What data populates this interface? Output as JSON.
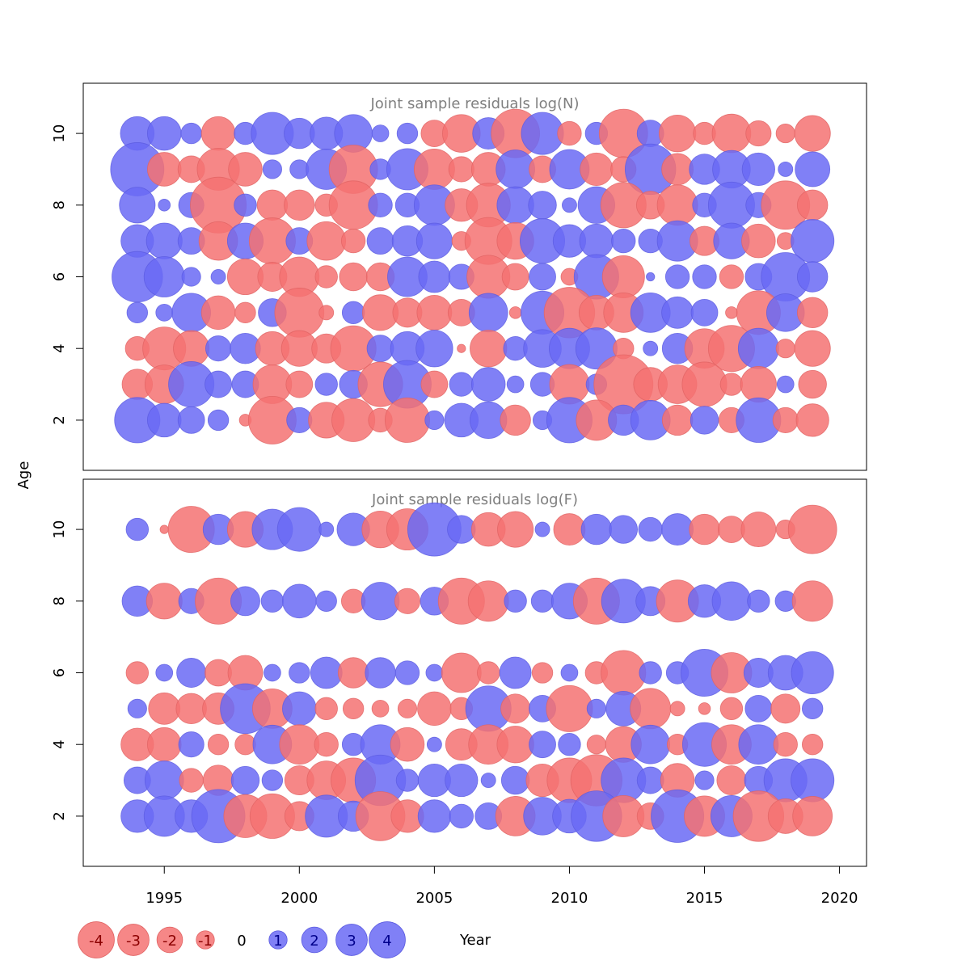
{
  "chart_data": {
    "type": "scatter",
    "ylabel": "Age",
    "xlabel": "Year",
    "xlim": [
      1992,
      2021
    ],
    "xticks": [
      1995,
      2000,
      2005,
      2010,
      2015,
      2020
    ],
    "years": [
      1994,
      1995,
      1996,
      1997,
      1998,
      1999,
      2000,
      2001,
      2002,
      2003,
      2004,
      2005,
      2006,
      2007,
      2008,
      2009,
      2010,
      2011,
      2012,
      2013,
      2014,
      2015,
      2016,
      2017,
      2018,
      2019
    ],
    "colors": {
      "positive": "#6a6af5",
      "negative": "#f57272"
    },
    "panels": [
      {
        "title": "Joint sample residuals log(N)",
        "ylim": [
          0.6,
          11.4
        ],
        "yticks": [
          2,
          4,
          6,
          8,
          10
        ],
        "ages": [
          10,
          9,
          8,
          7,
          6,
          5,
          4,
          3,
          2
        ],
        "residuals": [
          [
            1.6,
            1.6,
            0.6,
            -1.6,
            0.7,
            2.5,
            1.3,
            1.5,
            2.0,
            0.4,
            0.6,
            -1.0,
            -2.0,
            1.4,
            -3.3,
            2.5,
            -0.8,
            0.7,
            -3.3,
            1.0,
            -1.9,
            -0.7,
            -2.1,
            -0.9,
            -0.5,
            -1.8
          ],
          [
            4.0,
            -1.6,
            -1.0,
            -2.5,
            -1.6,
            0.5,
            0.5,
            2.3,
            -3.3,
            0.6,
            2.4,
            -2.3,
            -0.9,
            -1.6,
            2.1,
            -1.0,
            2.2,
            -1.5,
            -0.9,
            3.6,
            -1.4,
            1.3,
            2.0,
            1.5,
            0.3,
            1.7
          ],
          [
            1.8,
            0.2,
            0.9,
            -4.4,
            0.7,
            -1.3,
            -1.3,
            -0.7,
            -3.3,
            0.8,
            0.8,
            2.3,
            -1.5,
            -2.7,
            1.9,
            1.1,
            0.3,
            1.9,
            -2.9,
            -1.1,
            -2.3,
            0.8,
            3.0,
            0.9,
            -3.3,
            -1.3
          ],
          [
            1.5,
            1.8,
            1.0,
            -2.1,
            1.8,
            -3.0,
            1.0,
            -2.1,
            -0.8,
            1.0,
            1.3,
            1.8,
            -0.5,
            -3.1,
            -1.9,
            2.8,
            1.5,
            1.6,
            0.8,
            0.8,
            2.3,
            -1.2,
            1.8,
            -1.6,
            -0.4,
            2.6
          ],
          [
            3.6,
            2.3,
            0.5,
            0.3,
            -1.8,
            -1.2,
            -2.2,
            -0.7,
            -1.1,
            -1.1,
            2.2,
            1.4,
            0.9,
            -2.6,
            -1.0,
            1.0,
            -0.4,
            2.8,
            -2.5,
            0.1,
            0.8,
            0.8,
            -0.8,
            1.0,
            3.3,
            1.3
          ],
          [
            0.6,
            0.4,
            2.1,
            -1.6,
            -0.6,
            1.1,
            -3.4,
            -0.3,
            0.7,
            -1.8,
            -1.2,
            -1.7,
            -1.0,
            2.1,
            -0.2,
            2.6,
            -3.6,
            -1.7,
            -2.2,
            2.2,
            1.4,
            1.0,
            -0.2,
            -2.7,
            2.0,
            -1.3
          ],
          [
            -0.8,
            -2.6,
            -1.8,
            0.9,
            1.3,
            -1.6,
            -1.8,
            -1.2,
            -2.9,
            1.0,
            1.6,
            1.9,
            -0.1,
            -1.9,
            0.8,
            2.0,
            2.3,
            2.4,
            -0.6,
            0.3,
            1.3,
            -2.2,
            -3.0,
            2.3,
            -0.5,
            -1.8
          ],
          [
            -1.3,
            -2.1,
            2.9,
            1.0,
            1.0,
            -2.1,
            -1.0,
            0.7,
            1.1,
            -2.8,
            3.2,
            -1.0,
            0.8,
            1.6,
            0.4,
            0.8,
            -2.2,
            0.6,
            -4.9,
            -1.6,
            -2.1,
            -2.8,
            -0.7,
            -1.8,
            0.4,
            -1.1
          ],
          [
            2.9,
            1.6,
            1.0,
            0.6,
            -0.2,
            -3.2,
            0.9,
            -1.8,
            -2.6,
            -0.8,
            -2.8,
            0.5,
            1.6,
            1.9,
            -1.3,
            0.5,
            2.9,
            -2.3,
            1.3,
            2.2,
            -1.3,
            1.1,
            -0.9,
            2.8,
            -0.9,
            -1.5
          ]
        ]
      },
      {
        "title": "Joint sample residuals log(F)",
        "ylim": [
          0.6,
          11.4
        ],
        "yticks": [
          2,
          4,
          6,
          8,
          10
        ],
        "ages": [
          10,
          8,
          6,
          5,
          4,
          3,
          2
        ],
        "residuals": [
          [
            0.7,
            -0.1,
            -3.0,
            1.3,
            -1.8,
            2.3,
            2.7,
            0.3,
            1.5,
            -1.9,
            -2.4,
            4.0,
            1.1,
            -1.6,
            -1.8,
            0.3,
            -1.4,
            1.3,
            1.1,
            0.8,
            1.4,
            -1.3,
            -1.0,
            -1.7,
            -0.5,
            -3.3
          ],
          [
            1.3,
            -1.8,
            0.9,
            -3.0,
            1.2,
            0.7,
            1.6,
            0.6,
            -0.8,
            2.0,
            -0.9,
            1.1,
            -3.0,
            -2.3,
            0.7,
            0.7,
            1.8,
            -3.0,
            2.7,
            1.2,
            -2.5,
            1.5,
            2.1,
            0.7,
            0.6,
            -2.3
          ],
          [
            -0.7,
            0.4,
            1.2,
            -1.0,
            -1.7,
            0.4,
            0.6,
            1.4,
            -1.3,
            1.3,
            0.8,
            0.4,
            -2.2,
            -0.7,
            1.4,
            -0.6,
            0.4,
            -0.7,
            -2.8,
            0.7,
            0.7,
            3.1,
            -2.3,
            1.2,
            1.7,
            2.5
          ],
          [
            0.5,
            -1.4,
            -1.3,
            -1.4,
            3.5,
            -2.2,
            1.6,
            -0.7,
            -0.6,
            -0.4,
            -0.5,
            -1.6,
            -0.7,
            2.9,
            -1.2,
            1.0,
            -3.0,
            0.5,
            1.7,
            -2.3,
            -0.3,
            -0.2,
            -0.7,
            1.0,
            -1.2,
            0.6
          ],
          [
            -1.5,
            -1.6,
            0.9,
            -0.6,
            -0.6,
            2.1,
            -2.2,
            -0.8,
            0.7,
            2.2,
            -1.6,
            0.3,
            -1.4,
            -2.2,
            -1.9,
            1.0,
            0.7,
            -0.5,
            -1.8,
            2.1,
            -0.6,
            2.7,
            -2.2,
            2.2,
            -0.8,
            -0.6
          ],
          [
            1.0,
            2.1,
            -0.8,
            -1.3,
            1.1,
            0.6,
            -1.2,
            -2.1,
            -2.8,
            3.6,
            0.7,
            1.5,
            1.5,
            0.3,
            1.1,
            -1.5,
            -2.8,
            -3.7,
            2.8,
            1.0,
            -1.6,
            0.5,
            -1.2,
            1.1,
            2.6,
            2.6
          ],
          [
            1.5,
            2.3,
            1.5,
            4.0,
            -2.6,
            -2.8,
            -1.2,
            2.5,
            1.3,
            -3.4,
            -1.5,
            1.5,
            0.8,
            1.0,
            -2.2,
            2.0,
            1.6,
            3.6,
            -2.4,
            -1.0,
            3.9,
            -2.3,
            2.4,
            -3.6,
            -1.7,
            -2.2
          ]
        ]
      }
    ],
    "legend": {
      "values": [
        -4,
        -3,
        -2,
        -1,
        0,
        1,
        2,
        3,
        4
      ],
      "labels": [
        "-4",
        "-3",
        "-2",
        "-1",
        "0",
        "1",
        "2",
        "3",
        "4"
      ]
    }
  }
}
